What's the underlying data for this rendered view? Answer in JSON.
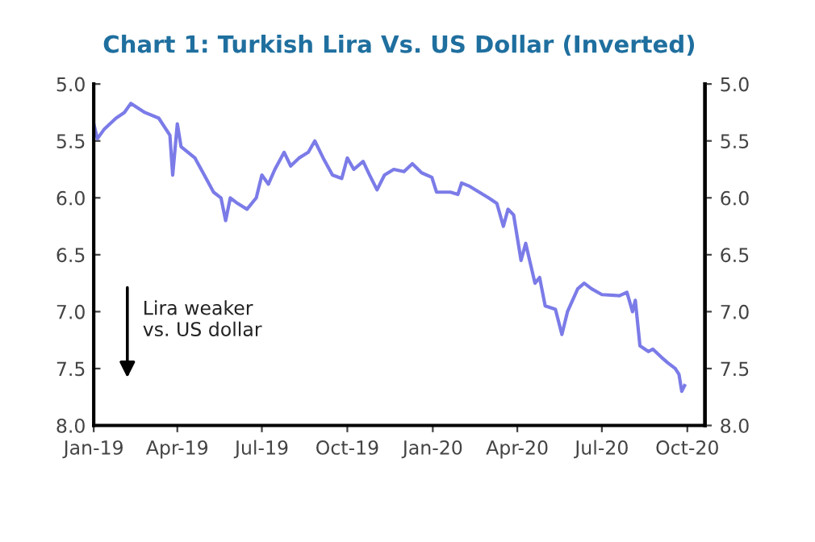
{
  "chart_data": {
    "type": "line",
    "title": "Chart 1: Turkish Lira Vs. US Dollar (Inverted)",
    "x": [
      "2019-01-01",
      "2019-01-05",
      "2019-01-12",
      "2019-01-25",
      "2019-02-03",
      "2019-02-10",
      "2019-02-25",
      "2019-03-12",
      "2019-03-24",
      "2019-03-27",
      "2019-04-01",
      "2019-04-05",
      "2019-04-20",
      "2019-04-30",
      "2019-05-10",
      "2019-05-18",
      "2019-05-23",
      "2019-05-28",
      "2019-06-05",
      "2019-06-15",
      "2019-06-25",
      "2019-07-01",
      "2019-07-08",
      "2019-07-15",
      "2019-07-25",
      "2019-08-01",
      "2019-08-10",
      "2019-08-20",
      "2019-08-27",
      "2019-09-05",
      "2019-09-15",
      "2019-09-25",
      "2019-10-01",
      "2019-10-08",
      "2019-10-18",
      "2019-10-25",
      "2019-11-02",
      "2019-11-10",
      "2019-11-20",
      "2019-12-01",
      "2019-12-10",
      "2019-12-20",
      "2019-12-31",
      "2020-01-05",
      "2020-01-20",
      "2020-01-28",
      "2020-02-01",
      "2020-02-10",
      "2020-02-20",
      "2020-03-01",
      "2020-03-10",
      "2020-03-17",
      "2020-03-22",
      "2020-03-28",
      "2020-04-05",
      "2020-04-10",
      "2020-04-20",
      "2020-04-25",
      "2020-05-01",
      "2020-05-12",
      "2020-05-19",
      "2020-05-25",
      "2020-06-05",
      "2020-06-12",
      "2020-06-20",
      "2020-07-01",
      "2020-07-20",
      "2020-07-28",
      "2020-08-03",
      "2020-08-06",
      "2020-08-11",
      "2020-08-20",
      "2020-08-25",
      "2020-09-03",
      "2020-09-10",
      "2020-09-18",
      "2020-09-22",
      "2020-09-25",
      "2020-09-28"
    ],
    "series": [
      {
        "color": "#7b7be8",
        "values": [
          5.35,
          5.48,
          5.4,
          5.3,
          5.25,
          5.17,
          5.25,
          5.3,
          5.45,
          5.8,
          5.35,
          5.55,
          5.65,
          5.8,
          5.95,
          6.0,
          6.2,
          6.0,
          6.05,
          6.1,
          6.0,
          5.8,
          5.88,
          5.75,
          5.6,
          5.72,
          5.65,
          5.6,
          5.5,
          5.65,
          5.8,
          5.83,
          5.65,
          5.75,
          5.68,
          5.8,
          5.93,
          5.8,
          5.75,
          5.77,
          5.7,
          5.78,
          5.82,
          5.95,
          5.95,
          5.97,
          5.87,
          5.9,
          5.95,
          6.0,
          6.05,
          6.25,
          6.1,
          6.15,
          6.55,
          6.4,
          6.75,
          6.7,
          6.95,
          6.98,
          7.2,
          7.0,
          6.8,
          6.75,
          6.8,
          6.85,
          6.86,
          6.83,
          7.0,
          6.9,
          7.3,
          7.35,
          7.33,
          7.4,
          7.45,
          7.5,
          7.55,
          7.7,
          7.65
        ]
      }
    ],
    "xlim": [
      "2019-01-01",
      "2020-10-20"
    ],
    "xticks": [
      {
        "value": "2019-01-01",
        "label": "Jan-19"
      },
      {
        "value": "2019-04-01",
        "label": "Apr-19"
      },
      {
        "value": "2019-07-01",
        "label": "Jul-19"
      },
      {
        "value": "2019-10-01",
        "label": "Oct-19"
      },
      {
        "value": "2020-01-01",
        "label": "Jan-20"
      },
      {
        "value": "2020-04-01",
        "label": "Apr-20"
      },
      {
        "value": "2020-07-01",
        "label": "Jul-20"
      },
      {
        "value": "2020-10-01",
        "label": "Oct-20"
      }
    ],
    "ylim": [
      8.0,
      5.0
    ],
    "yticks": [
      {
        "value": 5,
        "label": "5.0"
      },
      {
        "value": 5.5,
        "label": "5.5"
      },
      {
        "value": 6,
        "label": "6.0"
      },
      {
        "value": 6.5,
        "label": "6.5"
      },
      {
        "value": 7,
        "label": "7.0"
      },
      {
        "value": 7.5,
        "label": "7.5"
      },
      {
        "value": 8,
        "label": "8.0"
      }
    ],
    "y2lim": [
      8.0,
      5.0
    ],
    "y2ticks": [
      {
        "value": 5,
        "label": "5.0"
      },
      {
        "value": 5.5,
        "label": "5.5"
      },
      {
        "value": 6,
        "label": "6.0"
      },
      {
        "value": 6.5,
        "label": "6.5"
      },
      {
        "value": 7,
        "label": "7.0"
      },
      {
        "value": 7.5,
        "label": "7.5"
      },
      {
        "value": 8,
        "label": "8.0"
      }
    ],
    "annotations": [
      "Lira weaker\nvs. US dollar"
    ],
    "grid": false
  }
}
